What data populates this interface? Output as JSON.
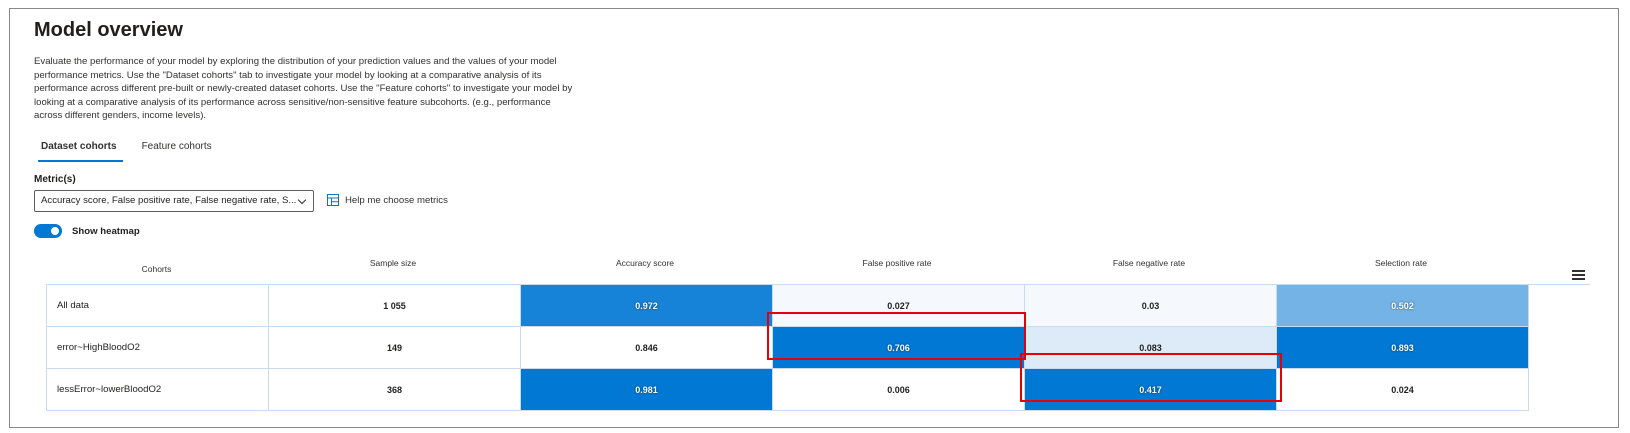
{
  "title": "Model overview",
  "description": "Evaluate the performance of your model by exploring the distribution of your prediction values and the values of your model performance metrics. Use the \"Dataset cohorts\" tab to investigate your model by looking at a comparative analysis of its performance across different pre-built or newly-created dataset cohorts. Use the \"Feature cohorts\" to investigate your model by looking at a comparative analysis of its performance across sensitive/non-sensitive feature subcohorts. (e.g., performance across different genders, income levels).",
  "tabs": [
    {
      "label": "Dataset cohorts",
      "active": true
    },
    {
      "label": "Feature cohorts",
      "active": false
    }
  ],
  "metrics": {
    "label": "Metric(s)",
    "selected": "Accuracy score, False positive rate, False negative rate, S...",
    "help_label": "Help me choose metrics"
  },
  "heatmap_toggle": {
    "label": "Show heatmap",
    "on": true
  },
  "table": {
    "headers": [
      "Cohorts",
      "Sample size",
      "Accuracy score",
      "False positive rate",
      "False negative rate",
      "Selection rate"
    ],
    "rows": [
      {
        "cohort": "All data",
        "sample_size": "1 055",
        "values": [
          "0.972",
          "0.027",
          "0.03",
          "0.502"
        ]
      },
      {
        "cohort": "error~HighBloodO2",
        "sample_size": "149",
        "values": [
          "0.846",
          "0.706",
          "0.083",
          "0.893"
        ]
      },
      {
        "cohort": "lessError~lowerBloodO2",
        "sample_size": "368",
        "values": [
          "0.981",
          "0.006",
          "0.417",
          "0.024"
        ]
      }
    ],
    "heat_colors": [
      [
        "#1783d8",
        "#f5f9fd",
        "#f5f9fd",
        "#73b3e6"
      ],
      [
        "#ffffff",
        "#0078d4",
        "#ddeaf7",
        "#0078d4"
      ],
      [
        "#0078d4",
        "#ffffff",
        "#0078d4",
        "#ffffff"
      ]
    ],
    "dark_cells": [
      [
        true,
        false,
        false,
        true
      ],
      [
        false,
        true,
        false,
        true
      ],
      [
        true,
        false,
        true,
        false
      ]
    ]
  },
  "highlight_color": "#e3000b"
}
